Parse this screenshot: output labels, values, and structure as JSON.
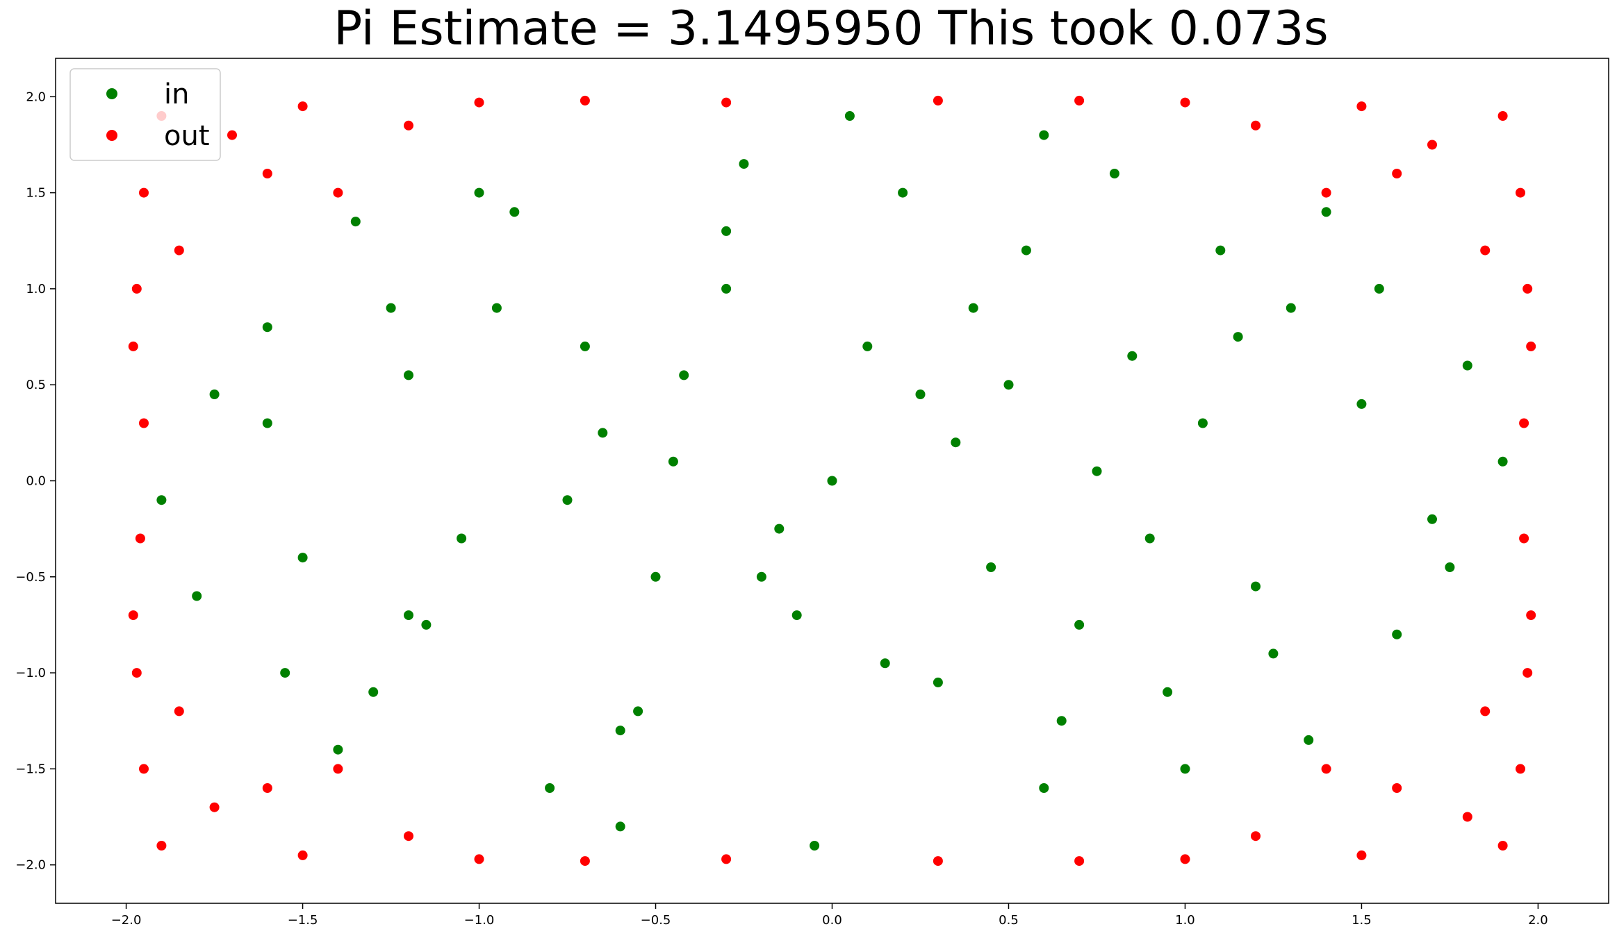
{
  "chart_data": {
    "type": "scatter",
    "title": "Pi Estimate = 3.1495950 This took 0.073s",
    "xlabel": "",
    "ylabel": "",
    "xlim": [
      -2.2,
      2.2
    ],
    "ylim": [
      -2.2,
      2.2
    ],
    "x_ticks": [
      -2.0,
      -1.5,
      -1.0,
      -0.5,
      0.0,
      0.5,
      1.0,
      1.5,
      2.0
    ],
    "y_ticks": [
      -2.0,
      -1.5,
      -1.0,
      -0.5,
      0.0,
      0.5,
      1.0,
      1.5,
      2.0
    ],
    "x_tick_labels": [
      "−2.0",
      "−1.5",
      "−1.0",
      "−0.5",
      "0.0",
      "0.5",
      "1.0",
      "1.5",
      "2.0"
    ],
    "y_tick_labels": [
      "−2.0",
      "−1.5",
      "−1.0",
      "−0.5",
      "0.0",
      "0.5",
      "1.0",
      "1.5",
      "2.0"
    ],
    "grid": false,
    "legend_position": "top-left",
    "series": [
      {
        "name": "in",
        "color": "#008000",
        "points": [
          [
            0.0,
            0.0
          ],
          [
            0.35,
            0.2
          ],
          [
            -0.42,
            0.55
          ],
          [
            0.9,
            -0.3
          ],
          [
            -1.2,
            -0.7
          ],
          [
            1.3,
            0.9
          ],
          [
            -0.6,
            -1.3
          ],
          [
            0.2,
            1.5
          ],
          [
            -1.6,
            0.3
          ],
          [
            1.7,
            -0.2
          ],
          [
            0.6,
            -1.6
          ],
          [
            -0.9,
            1.4
          ],
          [
            1.1,
            1.2
          ],
          [
            -1.3,
            -1.1
          ],
          [
            0.4,
            0.9
          ],
          [
            -0.2,
            -0.5
          ],
          [
            0.75,
            0.05
          ],
          [
            -0.75,
            -0.1
          ],
          [
            0.15,
            -0.95
          ],
          [
            -0.3,
            1.0
          ],
          [
            1.5,
            0.4
          ],
          [
            -1.5,
            -0.4
          ],
          [
            0.95,
            -1.1
          ],
          [
            -0.95,
            0.9
          ],
          [
            1.9,
            0.1
          ],
          [
            -1.9,
            -0.1
          ],
          [
            0.05,
            1.9
          ],
          [
            -0.05,
            -1.9
          ],
          [
            1.35,
            -1.35
          ],
          [
            -1.35,
            1.35
          ],
          [
            1.4,
            1.4
          ],
          [
            -1.4,
            -1.4
          ],
          [
            0.55,
            1.2
          ],
          [
            -0.55,
            -1.2
          ],
          [
            1.2,
            -0.55
          ],
          [
            -1.2,
            0.55
          ],
          [
            0.25,
            0.45
          ],
          [
            -0.65,
            0.25
          ],
          [
            0.85,
            0.65
          ],
          [
            -0.15,
            -0.25
          ],
          [
            1.6,
            -0.8
          ],
          [
            -1.6,
            0.8
          ],
          [
            0.8,
            1.6
          ],
          [
            -0.8,
            -1.6
          ],
          [
            1.8,
            0.6
          ],
          [
            -1.8,
            -0.6
          ],
          [
            0.6,
            1.8
          ],
          [
            -0.6,
            -1.8
          ],
          [
            1.05,
            0.3
          ],
          [
            -1.05,
            -0.3
          ],
          [
            0.3,
            -1.05
          ],
          [
            -0.3,
            1.3
          ],
          [
            1.25,
            -0.9
          ],
          [
            -1.25,
            0.9
          ],
          [
            0.45,
            -0.45
          ],
          [
            -0.45,
            0.1
          ],
          [
            0.7,
            -0.75
          ],
          [
            -0.7,
            0.7
          ],
          [
            1.55,
            1.0
          ],
          [
            -1.55,
            -1.0
          ],
          [
            1.0,
            -1.5
          ],
          [
            -1.0,
            1.5
          ],
          [
            0.1,
            0.7
          ],
          [
            -0.1,
            -0.7
          ],
          [
            1.75,
            -0.45
          ],
          [
            -1.75,
            0.45
          ],
          [
            0.5,
            0.5
          ],
          [
            -0.5,
            -0.5
          ],
          [
            1.15,
            0.75
          ],
          [
            -1.15,
            -0.75
          ],
          [
            0.65,
            -1.25
          ],
          [
            -0.25,
            1.65
          ]
        ]
      },
      {
        "name": "out",
        "color": "#ff0000",
        "points": [
          [
            -1.9,
            1.9
          ],
          [
            1.9,
            1.9
          ],
          [
            -1.9,
            -1.9
          ],
          [
            1.9,
            -1.9
          ],
          [
            -1.7,
            1.8
          ],
          [
            1.7,
            1.75
          ],
          [
            -1.75,
            -1.7
          ],
          [
            1.8,
            -1.75
          ],
          [
            -1.95,
            1.5
          ],
          [
            1.95,
            1.5
          ],
          [
            -1.95,
            -1.5
          ],
          [
            1.95,
            -1.5
          ],
          [
            -1.5,
            1.95
          ],
          [
            1.5,
            1.95
          ],
          [
            -1.5,
            -1.95
          ],
          [
            1.5,
            -1.95
          ],
          [
            -1.6,
            1.6
          ],
          [
            1.6,
            1.6
          ],
          [
            -1.6,
            -1.6
          ],
          [
            1.6,
            -1.6
          ],
          [
            -1.85,
            1.2
          ],
          [
            1.85,
            1.2
          ],
          [
            -1.85,
            -1.2
          ],
          [
            1.85,
            -1.2
          ],
          [
            -1.2,
            1.85
          ],
          [
            1.2,
            1.85
          ],
          [
            -1.2,
            -1.85
          ],
          [
            1.2,
            -1.85
          ],
          [
            -1.98,
            0.7
          ],
          [
            1.98,
            0.7
          ],
          [
            -1.98,
            -0.7
          ],
          [
            1.98,
            -0.7
          ],
          [
            -0.7,
            1.98
          ],
          [
            0.7,
            1.98
          ],
          [
            -0.7,
            -1.98
          ],
          [
            0.7,
            -1.98
          ],
          [
            -1.4,
            1.5
          ],
          [
            1.4,
            1.5
          ],
          [
            -1.4,
            -1.5
          ],
          [
            1.4,
            -1.5
          ],
          [
            -1.97,
            1.0
          ],
          [
            1.97,
            1.0
          ],
          [
            -1.97,
            -1.0
          ],
          [
            1.97,
            -1.0
          ],
          [
            -1.0,
            1.97
          ],
          [
            1.0,
            1.97
          ],
          [
            -1.0,
            -1.97
          ],
          [
            1.0,
            -1.97
          ],
          [
            -1.95,
            0.3
          ],
          [
            1.96,
            0.3
          ],
          [
            -1.96,
            -0.3
          ],
          [
            1.96,
            -0.3
          ],
          [
            -0.3,
            1.97
          ],
          [
            0.3,
            1.98
          ],
          [
            -0.3,
            -1.97
          ],
          [
            0.3,
            -1.98
          ]
        ]
      }
    ]
  }
}
